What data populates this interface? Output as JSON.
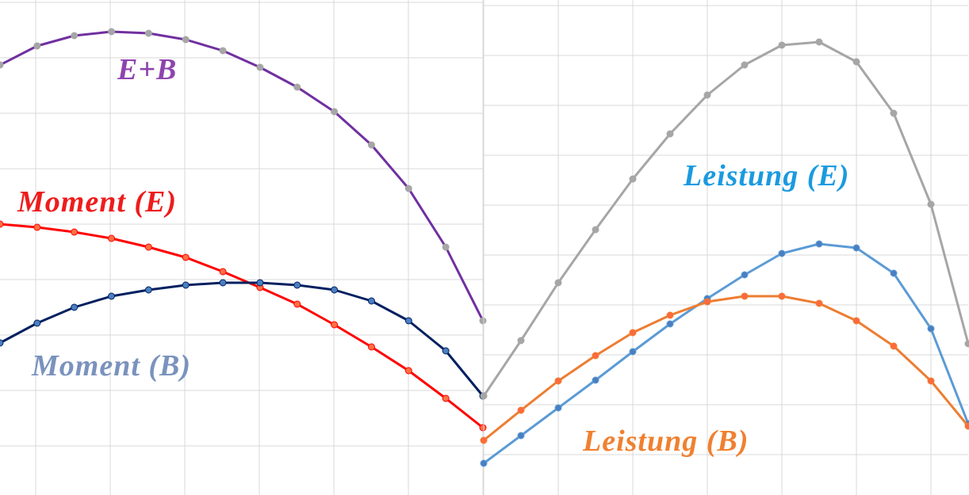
{
  "chart_data": [
    {
      "type": "line",
      "xlim": [
        0,
        13
      ],
      "ylim": [
        0,
        625
      ],
      "grid": true,
      "x": [
        0,
        1,
        2,
        3,
        4,
        5,
        6,
        7,
        8,
        9,
        10,
        11,
        12,
        13
      ],
      "series": [
        {
          "name": "E+B",
          "color": "#7030a0",
          "marker_color": "#a6a6a6",
          "values": [
            543,
            567,
            580,
            585,
            583,
            575,
            561,
            540,
            515,
            484,
            442,
            387,
            313,
            220
          ]
        },
        {
          "name": "Moment (E)",
          "color": "#ff0000",
          "marker_color": "#ff7043",
          "values": [
            342,
            338,
            332,
            324,
            313,
            300,
            282,
            262,
            241,
            215,
            187,
            157,
            122,
            85
          ]
        },
        {
          "name": "Moment (B)",
          "color": "#002060",
          "marker_color": "#4a7fc1",
          "values": [
            192,
            217,
            237,
            251,
            259,
            265,
            268,
            268,
            265,
            259,
            245,
            220,
            182,
            125
          ]
        }
      ]
    },
    {
      "type": "line",
      "xlim": [
        0,
        13
      ],
      "ylim": [
        0,
        625
      ],
      "grid": true,
      "x": [
        0,
        1,
        2,
        3,
        4,
        5,
        6,
        7,
        8,
        9,
        10,
        11,
        12,
        13
      ],
      "series": [
        {
          "color": "#a6a6a6",
          "marker_color": "#a6a6a6",
          "values": [
            125,
            195,
            268,
            335,
            399,
            456,
            505,
            543,
            568,
            572,
            547,
            482,
            367,
            191
          ]
        },
        {
          "name": "Leistung (E)",
          "color": "#5b9bd5",
          "marker_color": "#4a7fc1",
          "values": [
            40,
            75,
            110,
            145,
            181,
            216,
            248,
            278,
            305,
            317,
            312,
            280,
            210,
            90
          ]
        },
        {
          "name": "Leistung (B)",
          "color": "#ed7d31",
          "marker_color": "#ff6a3d",
          "values": [
            69,
            107,
            144,
            176,
            205,
            227,
            244,
            251,
            251,
            242,
            220,
            188,
            144,
            87
          ]
        }
      ]
    }
  ]
}
